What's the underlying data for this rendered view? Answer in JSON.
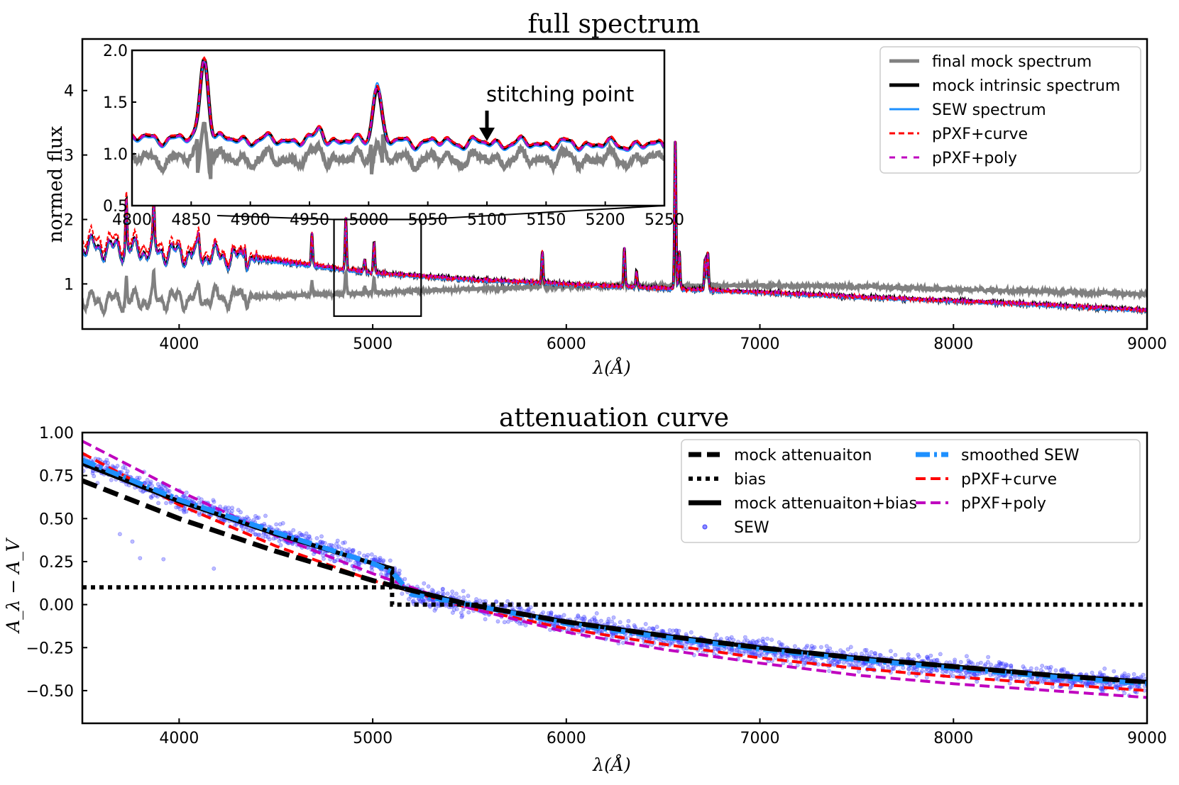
{
  "colors": {
    "final_mock": "#808080",
    "intrinsic": "#000000",
    "sew": "#1e90ff",
    "curve": "#ff0000",
    "poly": "#bf00bf",
    "sew_points": "#4040ff",
    "smoothed_sew": "#1e90ff"
  },
  "chart_data": [
    {
      "type": "line",
      "title": "full spectrum",
      "xlabel": "λ(Å)",
      "ylabel": "normed flux",
      "xlim": [
        3500,
        9000
      ],
      "ylim": [
        0.3,
        4.8
      ],
      "xticks": [
        4000,
        5000,
        6000,
        7000,
        8000,
        9000
      ],
      "yticks": [
        1,
        2,
        3,
        4
      ],
      "legend": "top-right",
      "series": [
        {
          "name": "final mock spectrum",
          "style": "solid-thick",
          "color_key": "final_mock"
        },
        {
          "name": "mock intrinsic spectrum",
          "style": "solid-thick",
          "color_key": "intrinsic"
        },
        {
          "name": "SEW spectrum",
          "style": "solid",
          "color_key": "sew"
        },
        {
          "name": "pPXF+curve",
          "style": "dashed",
          "color_key": "curve"
        },
        {
          "name": "pPXF+poly",
          "style": "dashed",
          "color_key": "poly"
        }
      ],
      "continuum_intrinsic": {
        "x": [
          3500,
          4000,
          4500,
          5000,
          5500,
          6000,
          6500,
          7000,
          7500,
          8000,
          8500,
          9000
        ],
        "y": [
          1.58,
          1.48,
          1.35,
          1.17,
          1.07,
          1.0,
          0.93,
          0.87,
          0.8,
          0.74,
          0.67,
          0.59
        ]
      },
      "continuum_final": {
        "x": [
          3500,
          4000,
          4500,
          5000,
          5500,
          6000,
          6500,
          7000,
          7500,
          8000,
          8500,
          9000
        ],
        "y": [
          0.72,
          0.77,
          0.81,
          0.86,
          0.92,
          0.96,
          0.97,
          0.98,
          0.96,
          0.92,
          0.88,
          0.84
        ]
      },
      "emission_lines": [
        {
          "x": 3727,
          "h": 0.8
        },
        {
          "x": 3869,
          "h": 0.6
        },
        {
          "x": 4101,
          "h": 0.2
        },
        {
          "x": 4340,
          "h": 0.3
        },
        {
          "x": 4686,
          "h": 0.5
        },
        {
          "x": 4861,
          "h": 0.8
        },
        {
          "x": 4959,
          "h": 0.2
        },
        {
          "x": 5007,
          "h": 0.5
        },
        {
          "x": 5876,
          "h": 0.5
        },
        {
          "x": 6300,
          "h": 0.6
        },
        {
          "x": 6363,
          "h": 0.25
        },
        {
          "x": 6563,
          "h": 2.35
        },
        {
          "x": 6584,
          "h": 0.6
        },
        {
          "x": 6717,
          "h": 0.5
        },
        {
          "x": 6731,
          "h": 0.6
        }
      ],
      "inset": {
        "xlim": [
          4800,
          5250
        ],
        "ylim": [
          0.5,
          2.0
        ],
        "xticks": [
          4800,
          4850,
          4900,
          4950,
          5000,
          5050,
          5100,
          5150,
          5200,
          5250
        ],
        "yticks": [
          0.5,
          1.0,
          1.5,
          2.0
        ],
        "annotation": "stitching point",
        "annotation_x": 5100,
        "peaks": [
          {
            "x": 4861,
            "h": 0.8,
            "w": 3.5
          },
          {
            "x": 4959,
            "h": 0.12,
            "w": 3
          },
          {
            "x": 5007,
            "h": 0.55,
            "w": 3.5
          }
        ],
        "intrinsic_level": {
          "x": [
            4800,
            5250
          ],
          "y": [
            1.15,
            1.08
          ]
        },
        "final_level": {
          "x": [
            4800,
            5250
          ],
          "y": [
            0.95,
            0.95
          ]
        }
      },
      "zoom_box": {
        "x": [
          4800,
          5250
        ],
        "y": [
          0.5,
          2.0
        ]
      }
    },
    {
      "type": "line",
      "title": "attenuation curve",
      "xlabel": "λ(Å)",
      "ylabel": "A_λ − A_V",
      "xlim": [
        3500,
        9000
      ],
      "ylim": [
        -0.69,
        1.0
      ],
      "xticks": [
        4000,
        5000,
        6000,
        7000,
        8000,
        9000
      ],
      "yticks": [
        -0.5,
        -0.25,
        0.0,
        0.25,
        0.5,
        0.75,
        1.0
      ],
      "ytick_labels": [
        "−0.50",
        "−0.25",
        "0.00",
        "0.25",
        "0.50",
        "0.75",
        "1.00"
      ],
      "legend": "top-right",
      "series": [
        {
          "name": "mock attenuaiton",
          "style": "dashed-thick",
          "color_key": "intrinsic",
          "x": [
            3500,
            4000,
            4500,
            5000,
            5100,
            5500,
            6000,
            6500,
            7000,
            7500,
            8000,
            8500,
            9000
          ],
          "y": [
            0.72,
            0.5,
            0.31,
            0.14,
            0.11,
            0.0,
            -0.1,
            -0.18,
            -0.25,
            -0.31,
            -0.36,
            -0.41,
            -0.45
          ]
        },
        {
          "name": "bias",
          "style": "dotted",
          "color_key": "intrinsic",
          "x": [
            3500,
            5100,
            5100,
            9000
          ],
          "y": [
            0.1,
            0.1,
            0.0,
            0.0
          ]
        },
        {
          "name": "mock attenuaiton+bias",
          "style": "solid-thick",
          "color_key": "intrinsic",
          "x": [
            3500,
            4000,
            4500,
            5000,
            5100,
            5100,
            5500,
            6000,
            6500,
            7000,
            7500,
            8000,
            8500,
            9000
          ],
          "y": [
            0.82,
            0.6,
            0.41,
            0.24,
            0.21,
            0.11,
            0.0,
            -0.1,
            -0.18,
            -0.25,
            -0.31,
            -0.36,
            -0.41,
            -0.45
          ]
        },
        {
          "name": "SEW",
          "style": "scatter",
          "color_key": "sew_points"
        },
        {
          "name": "smoothed SEW",
          "style": "dashdot-thick",
          "color_key": "smoothed_sew",
          "x": [
            3500,
            4000,
            4500,
            5000,
            5100,
            5200,
            5500,
            6000,
            6500,
            7000,
            7500,
            8000,
            8500,
            9000
          ],
          "y": [
            0.84,
            0.61,
            0.42,
            0.24,
            0.19,
            0.06,
            0.0,
            -0.11,
            -0.19,
            -0.26,
            -0.32,
            -0.37,
            -0.42,
            -0.46
          ]
        },
        {
          "name": "pPXF+curve",
          "style": "dashed",
          "color_key": "curve",
          "x": [
            3500,
            4000,
            4500,
            5000,
            5500,
            6000,
            6500,
            7000,
            7500,
            8000,
            8500,
            9000
          ],
          "y": [
            0.88,
            0.58,
            0.34,
            0.14,
            -0.02,
            -0.14,
            -0.23,
            -0.31,
            -0.37,
            -0.42,
            -0.46,
            -0.5
          ]
        },
        {
          "name": "pPXF+poly",
          "style": "dashed",
          "color_key": "poly",
          "x": [
            3500,
            4000,
            4500,
            5000,
            5500,
            6000,
            6500,
            7000,
            7500,
            8000,
            8500,
            9000
          ],
          "y": [
            0.95,
            0.66,
            0.4,
            0.18,
            -0.02,
            -0.16,
            -0.26,
            -0.34,
            -0.41,
            -0.46,
            -0.5,
            -0.54
          ]
        }
      ],
      "scatter_spread": 0.045
    }
  ]
}
